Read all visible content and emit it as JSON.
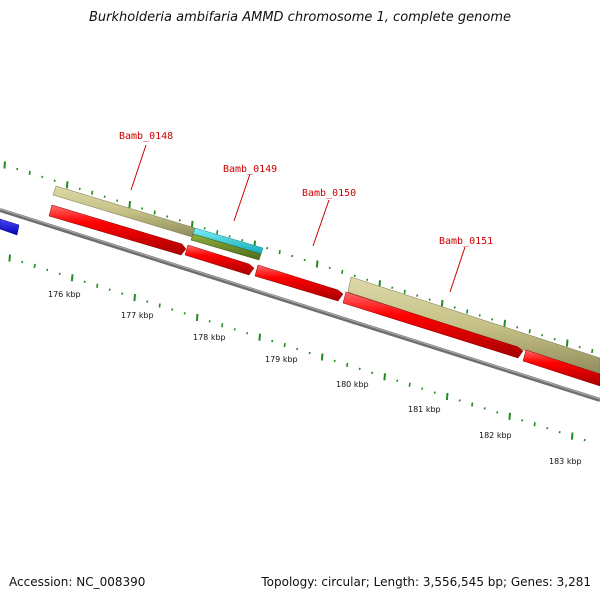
{
  "title": "Burkholderia ambifaria AMMD chromosome 1, complete genome",
  "footer": {
    "accession": "Accession: NC_008390",
    "summary": "Topology: circular; Length: 3,556,545 bp; Genes: 3,281"
  },
  "colors": {
    "forward_cds": "#ff0000",
    "gene_track": "#c8c48a",
    "highlight_upper": "#20c8d8",
    "highlight_lower": "#6b8e23",
    "previous_gene": "#0000ee",
    "backbone": "#808080",
    "ticks": "#228b22",
    "label": "#cc0000"
  },
  "genes": [
    {
      "label": "Bamb_0148"
    },
    {
      "label": "Bamb_0149"
    },
    {
      "label": "Bamb_0150"
    },
    {
      "label": "Bamb_0151"
    }
  ],
  "kbp_labels": [
    "176 kbp",
    "177 kbp",
    "178 kbp",
    "179 kbp",
    "180 kbp",
    "181 kbp",
    "182 kbp",
    "183 kbp"
  ]
}
